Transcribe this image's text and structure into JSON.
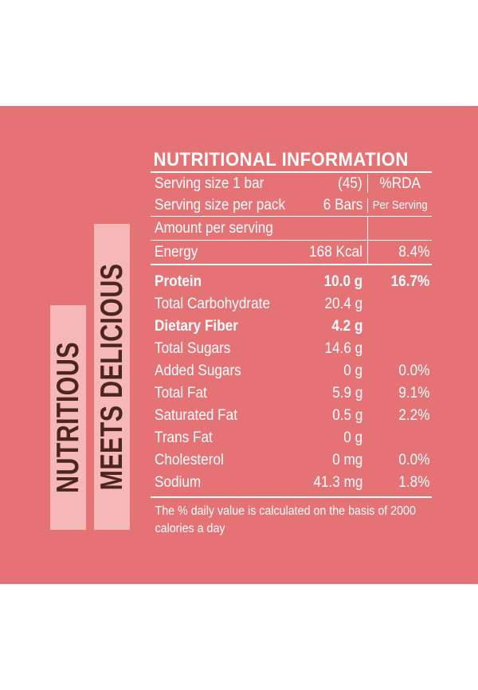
{
  "tags": {
    "nutritious": "NUTRITIOUS",
    "meets_delicious": "MEETS DELICIOUS"
  },
  "table": {
    "title": "NUTRITIONAL INFORMATION",
    "serving_size_label": "Serving size 1 bar",
    "serving_size_value": "(45)",
    "per_pack_label": "Serving size per pack",
    "per_pack_value": "6 Bars",
    "rda_header": "%RDA",
    "rda_subheader": "Per Serving",
    "amount_per_serving": "Amount per serving",
    "energy": {
      "label": "Energy",
      "value": "168 Kcal",
      "rda": "8.4%"
    },
    "rows": [
      {
        "label": "Protein",
        "value": "10.0 g",
        "rda": "16.7%",
        "bold": true
      },
      {
        "label": "Total Carbohydrate",
        "value": "20.4 g",
        "rda": ""
      },
      {
        "label": "Dietary Fiber",
        "value": "4.2 g",
        "rda": "",
        "bold": true
      },
      {
        "label": "Total Sugars",
        "value": "14.6 g",
        "rda": ""
      },
      {
        "label": "Added Sugars",
        "value": "0 g",
        "rda": "0.0%"
      },
      {
        "label": "Total Fat",
        "value": "5.9 g",
        "rda": "9.1%"
      },
      {
        "label": "Saturated Fat",
        "value": "0.5 g",
        "rda": "2.2%"
      },
      {
        "label": "Trans Fat",
        "value": "0 g",
        "rda": ""
      },
      {
        "label": "Cholesterol",
        "value": "0 mg",
        "rda": "0.0%"
      },
      {
        "label": "Sodium",
        "value": "41.3 mg",
        "rda": "1.8%"
      }
    ],
    "footer": "The % daily value is calculated on the basis of 2000 calories a day"
  },
  "colors": {
    "panel": "#e57376",
    "tag": "#f5b8b6",
    "tag_text": "#4b2620",
    "text": "#ffffff"
  }
}
